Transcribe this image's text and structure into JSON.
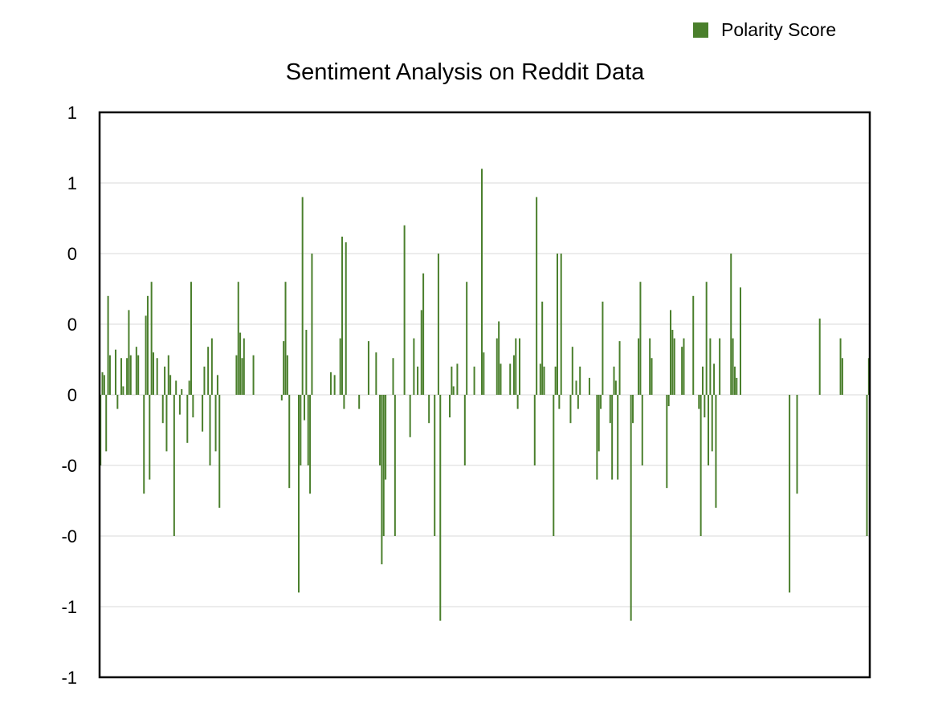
{
  "chart_data": {
    "type": "bar",
    "title": "Sentiment Analysis on Reddit Data",
    "legend": {
      "position": "top-right",
      "entries": [
        "Polarity Score"
      ]
    },
    "ytick_labels": [
      "1",
      "1",
      "0",
      "0",
      "0",
      "-0",
      "-0",
      "-1",
      "-1"
    ],
    "ylim": [
      -1,
      1
    ],
    "grid": true,
    "colors": {
      "bar": "#4a7f2c",
      "grid": "#d9d9d9",
      "frame": "#000000"
    },
    "series": [
      {
        "name": "Polarity Score",
        "values": [
          -0.25,
          0.08,
          0.07,
          -0.2,
          0.35,
          0.14,
          0,
          0,
          0.16,
          -0.05,
          0,
          0.13,
          0.03,
          0,
          0.13,
          0.3,
          0.14,
          0,
          0,
          0.17,
          0.14,
          0,
          0,
          -0.35,
          0.28,
          0.35,
          -0.3,
          0.4,
          0.15,
          0,
          0.13,
          0,
          0,
          -0.1,
          0.1,
          -0.2,
          0.14,
          0.07,
          0,
          -0.5,
          0.05,
          0,
          -0.07,
          0.02,
          0,
          0,
          -0.17,
          0.05,
          0.4,
          -0.08,
          0,
          0,
          0,
          0,
          -0.13,
          0.1,
          0,
          0.17,
          -0.25,
          0.2,
          0,
          -0.2,
          0.07,
          -0.4,
          0,
          0,
          0,
          0,
          0,
          0,
          0,
          0,
          0.14,
          0.4,
          0.22,
          0.13,
          0.2,
          0,
          0,
          0,
          0,
          0.14,
          0,
          0,
          0,
          0,
          0,
          0,
          0,
          0,
          0,
          0,
          0,
          0,
          0,
          0,
          -0.02,
          0.19,
          0.4,
          0.14,
          -0.33,
          0,
          0,
          0,
          0,
          -0.7,
          -0.25,
          0.7,
          -0.09,
          0.23,
          -0.25,
          -0.35,
          0.5,
          0,
          0,
          0,
          0,
          0,
          0,
          0,
          0,
          0,
          0.08,
          0,
          0.07,
          0,
          0,
          0.2,
          0.56,
          -0.05,
          0.54,
          0,
          0,
          0,
          0,
          0,
          0,
          -0.05,
          0,
          0,
          0,
          0,
          0.19,
          0,
          0,
          0,
          0.15,
          0,
          -0.25,
          -0.6,
          -0.5,
          -0.3,
          0,
          0,
          0,
          0.13,
          -0.5,
          0,
          0,
          0,
          0,
          0.6,
          0,
          0,
          -0.15,
          0,
          0.2,
          0,
          0.1,
          0,
          0.3,
          0.43,
          0,
          0,
          -0.1,
          0,
          0,
          -0.5,
          0,
          0.5,
          -0.8,
          0,
          0,
          0,
          0,
          -0.08,
          0.1,
          0.03,
          0,
          0.11,
          0,
          0,
          0,
          -0.25,
          0.4,
          0,
          0,
          0,
          0.1,
          0,
          0,
          0,
          0.8,
          0.15,
          0,
          0,
          0,
          0,
          0,
          0,
          0.2,
          0.26,
          0.11,
          0,
          0,
          0,
          0,
          0.11,
          0,
          0.14,
          0.2,
          -0.05,
          0.2,
          0,
          0,
          0,
          0,
          0,
          0,
          0,
          -0.25,
          0.7,
          0,
          0.11,
          0.33,
          0.1,
          0,
          0,
          0,
          0,
          -0.5,
          0.1,
          0.5,
          -0.05,
          0.5,
          0,
          0,
          0,
          0,
          -0.1,
          0.17,
          0,
          0.05,
          -0.05,
          0.1,
          0,
          0,
          0,
          0,
          0.06,
          0,
          0,
          0,
          -0.3,
          -0.2,
          -0.05,
          0.33,
          0,
          0,
          0,
          -0.1,
          -0.3,
          0.1,
          0.05,
          -0.3,
          0.19,
          0,
          0,
          0,
          0,
          0,
          -0.8,
          -0.1,
          0,
          0,
          0.2,
          0.4,
          -0.25,
          0,
          0,
          0,
          0.2,
          0.13,
          0,
          0,
          0,
          0,
          0,
          0,
          0,
          -0.33,
          -0.04,
          0.3,
          0.23,
          0.2,
          0,
          0,
          0,
          0.17,
          0.2,
          0,
          0,
          0,
          0,
          0.35,
          0,
          0,
          -0.05,
          -0.5,
          0.1,
          -0.08,
          0.4,
          -0.25,
          0.2,
          -0.2,
          0.11,
          -0.4,
          0,
          0.2,
          0,
          0,
          0,
          0,
          0,
          0.5,
          0.2,
          0.1,
          0.06,
          0,
          0.38,
          0,
          0,
          0,
          0,
          0,
          0,
          0,
          0,
          0,
          0,
          0,
          0,
          0,
          0,
          0,
          0,
          0,
          0,
          0,
          0,
          0,
          0,
          0,
          0,
          0,
          -0.7,
          0,
          0,
          0,
          -0.35,
          0,
          0,
          0,
          0,
          0,
          0,
          0,
          0,
          0,
          0,
          0,
          0.27,
          0,
          0,
          0,
          0,
          0,
          0,
          0,
          0,
          0,
          0,
          0.2,
          0.13,
          0,
          0,
          0,
          0,
          0,
          0,
          0,
          0,
          0,
          0,
          0,
          0,
          -0.5,
          0.13
        ]
      }
    ]
  }
}
